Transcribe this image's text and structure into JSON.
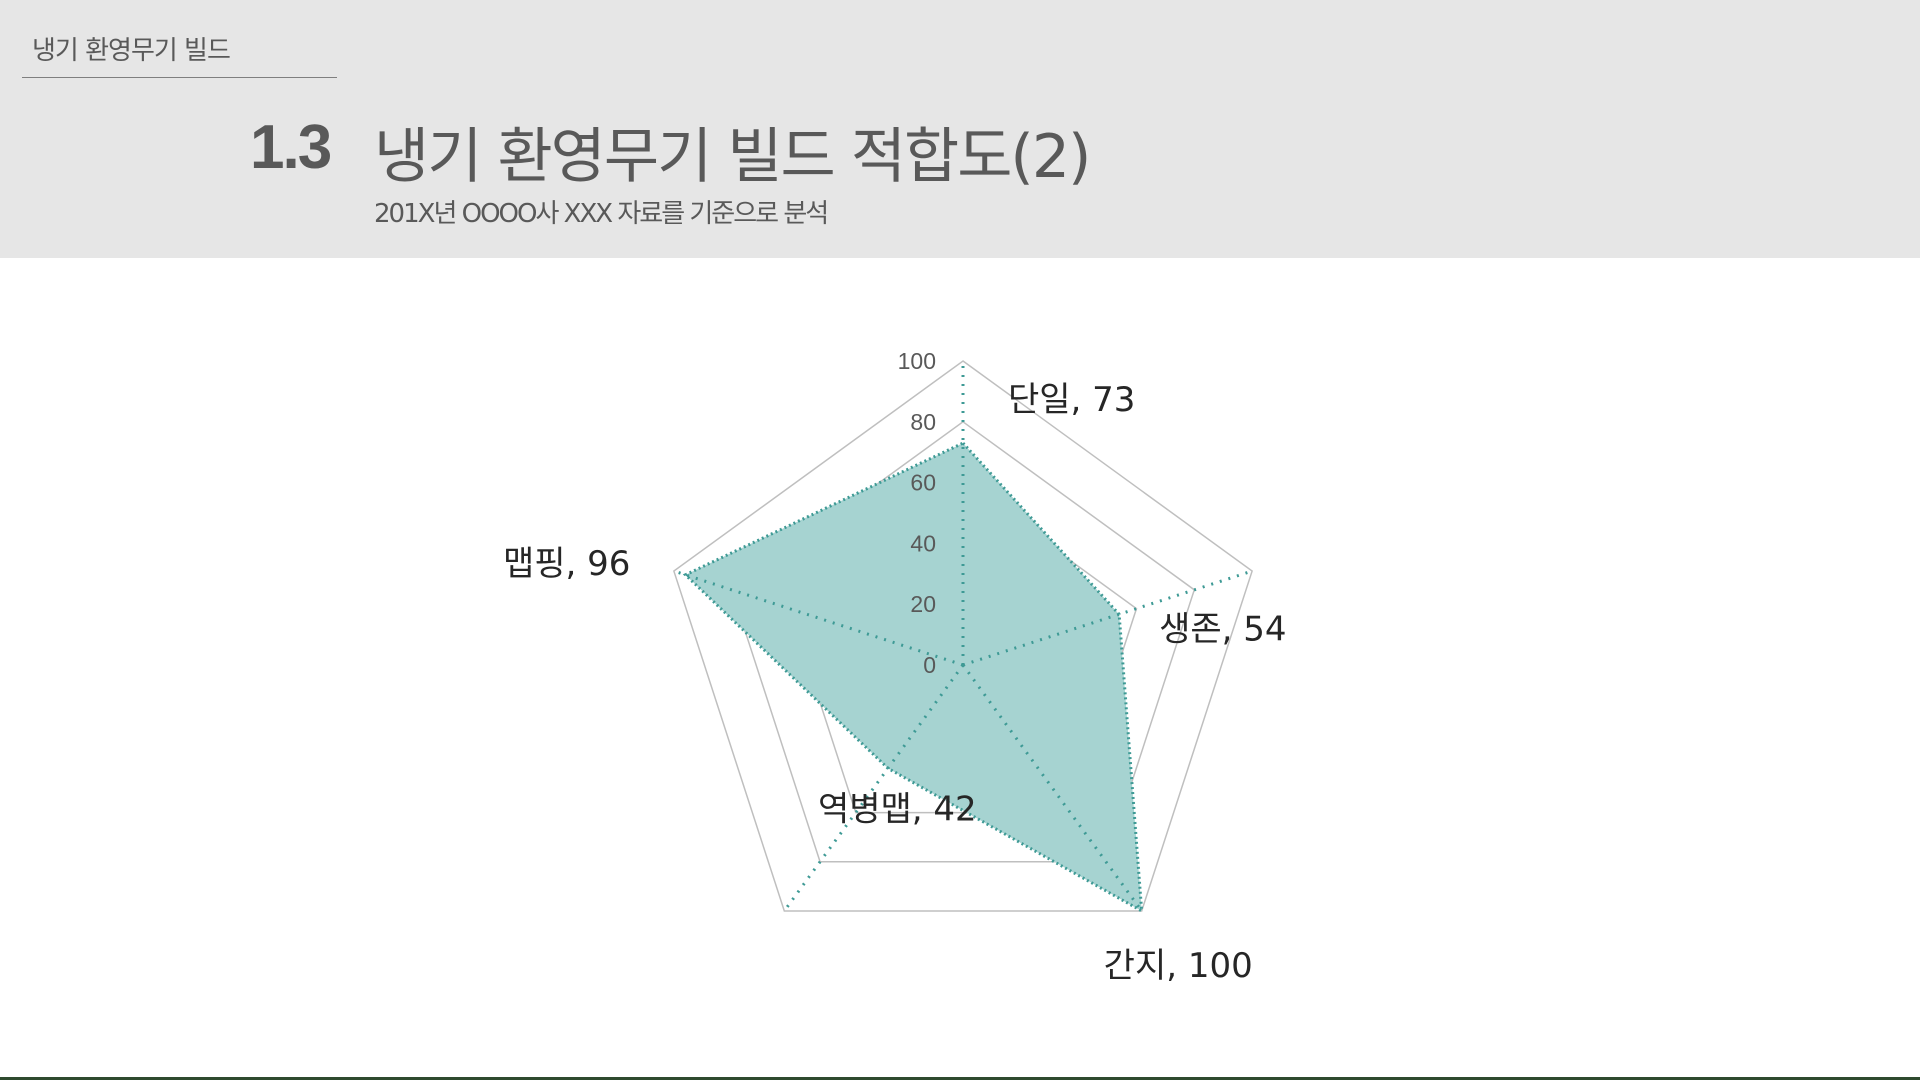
{
  "header": {
    "breadcrumb": "냉기 환영무기 빌드",
    "section_number": "1.3",
    "title": "냉기 환영무기 빌드 적합도(2)",
    "subtitle": "201X년 OOOO사 XXX 자료를 기준으로 분석"
  },
  "colors": {
    "header_background": "#e6e6e6",
    "text": "#595959",
    "series_fill": "#a6d3d1",
    "series_line": "#3e9a95",
    "grid": "#bfbfbf",
    "bottom_rule": "#2e4a2e"
  },
  "chart_data": {
    "type": "radar",
    "title": "",
    "categories": [
      "단일",
      "생존",
      "간지",
      "역병맵",
      "맵핑"
    ],
    "values": [
      73,
      54,
      100,
      42,
      96
    ],
    "data_labels": [
      "단일, 73",
      "생존, 54",
      "간지, 100",
      "역병맵, 42",
      "맵핑, 96"
    ],
    "range": [
      0,
      100
    ],
    "ticks": [
      0,
      20,
      40,
      60,
      80,
      100
    ],
    "tick_labels": [
      "0",
      "20",
      "40",
      "60",
      "80",
      "100"
    ],
    "grid": true,
    "legend": "none"
  }
}
